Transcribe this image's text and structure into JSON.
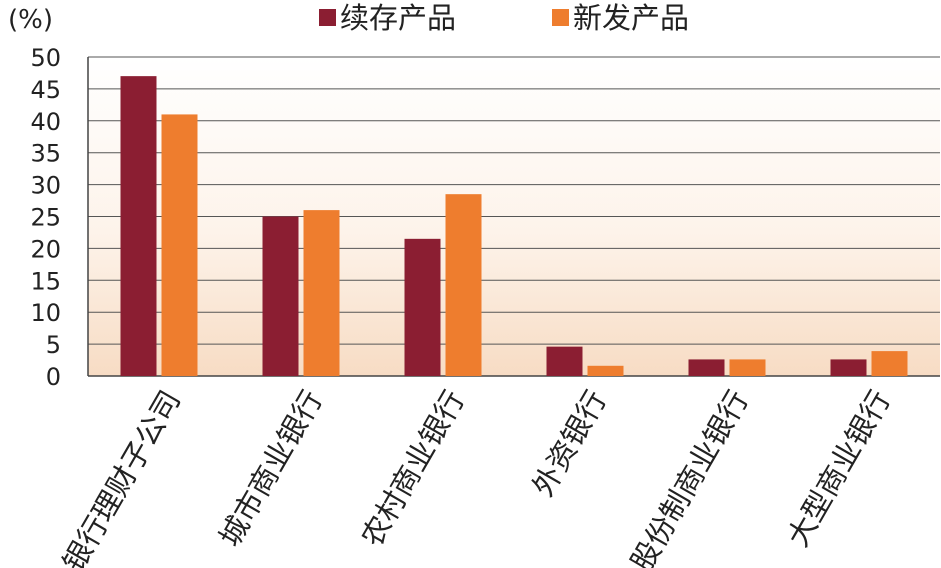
{
  "chart_data": {
    "type": "bar",
    "y_unit_label": "(%)",
    "categories": [
      "银行理财子公司",
      "城市商业银行",
      "农村商业银行",
      "外资银行",
      "股份制商业银行",
      "大型商业银行"
    ],
    "series": [
      {
        "name": "续存产品",
        "color": "#8b1e32",
        "values": [
          47,
          25,
          21.5,
          4.6,
          2.6,
          2.6
        ]
      },
      {
        "name": "新发产品",
        "color": "#ee7d2e",
        "values": [
          41,
          26,
          28.5,
          1.6,
          2.6,
          3.9
        ]
      }
    ],
    "ylim": [
      0,
      50
    ],
    "yticks": [
      0,
      5,
      10,
      15,
      20,
      25,
      30,
      35,
      40,
      45,
      50
    ],
    "grid": true,
    "legend_position": "top-center"
  }
}
